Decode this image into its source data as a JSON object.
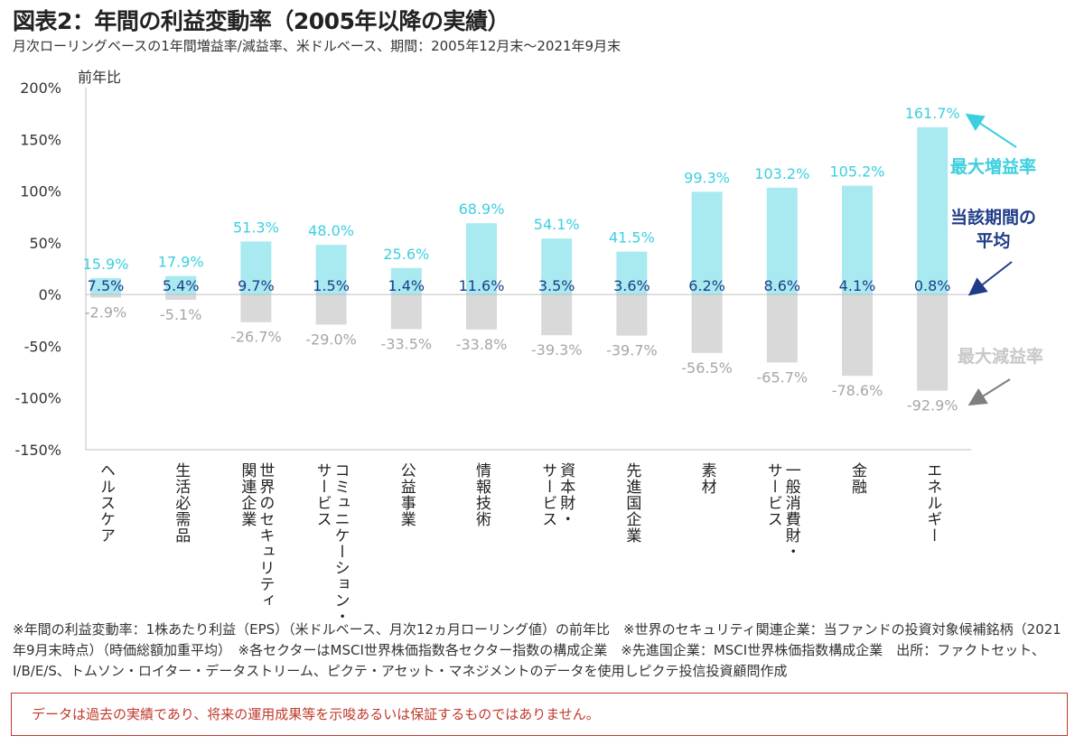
{
  "title": "図表2：年間の利益変動率（2005年以降の実績）",
  "subtitle": "月次ローリングベースの1年間増益率/減益率、米ドルベース、期間：2005年12月末～2021年9月末",
  "chart_data": {
    "type": "bar",
    "ylabel": "前年比",
    "ylim": [
      -150,
      200
    ],
    "yticks": [
      200,
      150,
      100,
      50,
      0,
      -50,
      -100,
      -150
    ],
    "ytick_labels": [
      "200%",
      "150%",
      "100%",
      "50%",
      "0%",
      "-50%",
      "-100%",
      "-150%"
    ],
    "grid": false,
    "categories": [
      "ヘルスケア",
      "生活必需品",
      "世界のセキュリティ\n関連企業",
      "コミュニケーション・\nサービス",
      "公益事業",
      "情報技術",
      "資本財・\nサービス",
      "先進国企業",
      "素材",
      "一般消費財・\nサービス",
      "金融",
      "エネルギー"
    ],
    "series": [
      {
        "name": "最大増益率",
        "color": "#a8eaf0",
        "label_color": "#3ccfe0",
        "values": [
          15.9,
          17.9,
          51.3,
          48.0,
          25.6,
          68.9,
          54.1,
          41.5,
          99.3,
          103.2,
          105.2,
          161.7
        ],
        "labels": [
          "15.9%",
          "17.9%",
          "51.3%",
          "48.0%",
          "25.6%",
          "68.9%",
          "54.1%",
          "41.5%",
          "99.3%",
          "103.2%",
          "105.2%",
          "161.7%"
        ]
      },
      {
        "name": "当該期間の平均",
        "color": "#1f3c88",
        "label_color": "#1f3c88",
        "values": [
          7.5,
          5.4,
          9.7,
          1.5,
          1.4,
          11.6,
          3.5,
          3.6,
          6.2,
          8.6,
          4.1,
          0.8
        ],
        "labels": [
          "7.5%",
          "5.4%",
          "9.7%",
          "1.5%",
          "1.4%",
          "11.6%",
          "3.5%",
          "3.6%",
          "6.2%",
          "8.6%",
          "4.1%",
          "0.8%"
        ]
      },
      {
        "name": "最大減益率",
        "color": "#d9d9d9",
        "label_color": "#a6a6a6",
        "values": [
          -2.9,
          -5.1,
          -26.7,
          -29.0,
          -33.5,
          -33.8,
          -39.3,
          -39.7,
          -56.5,
          -65.7,
          -78.6,
          -92.9
        ],
        "labels": [
          "-2.9%",
          "-5.1%",
          "-26.7%",
          "-29.0%",
          "-33.5%",
          "-33.8%",
          "-39.3%",
          "-39.7%",
          "-56.5%",
          "-65.7%",
          "-78.6%",
          "-92.9%"
        ]
      }
    ],
    "legend": {
      "max": "最大増益率",
      "avg": "当該期間の\n平均",
      "min": "最大減益率",
      "placement": "right"
    }
  },
  "notes": "※年間の利益変動率：1株あたり利益（EPS）（米ドルベース、月次12ヵ月ローリング値）の前年比　※世界のセキュリティ関連企業：当ファンドの投資対象候補銘柄（2021年9月末時点）（時価総額加重平均）　※各セクターはMSCI世界株価指数各セクター指数の構成企業　※先進国企業：MSCI世界株価指数構成企業　出所：ファクトセット、I/B/E/S、トムソン・ロイター・データストリーム、ピクテ・アセット・マネジメントのデータを使用しピクテ投信投資顧問作成",
  "disclaimer": "データは過去の実績であり、将来の運用成果等を示唆あるいは保証するものではありません。"
}
